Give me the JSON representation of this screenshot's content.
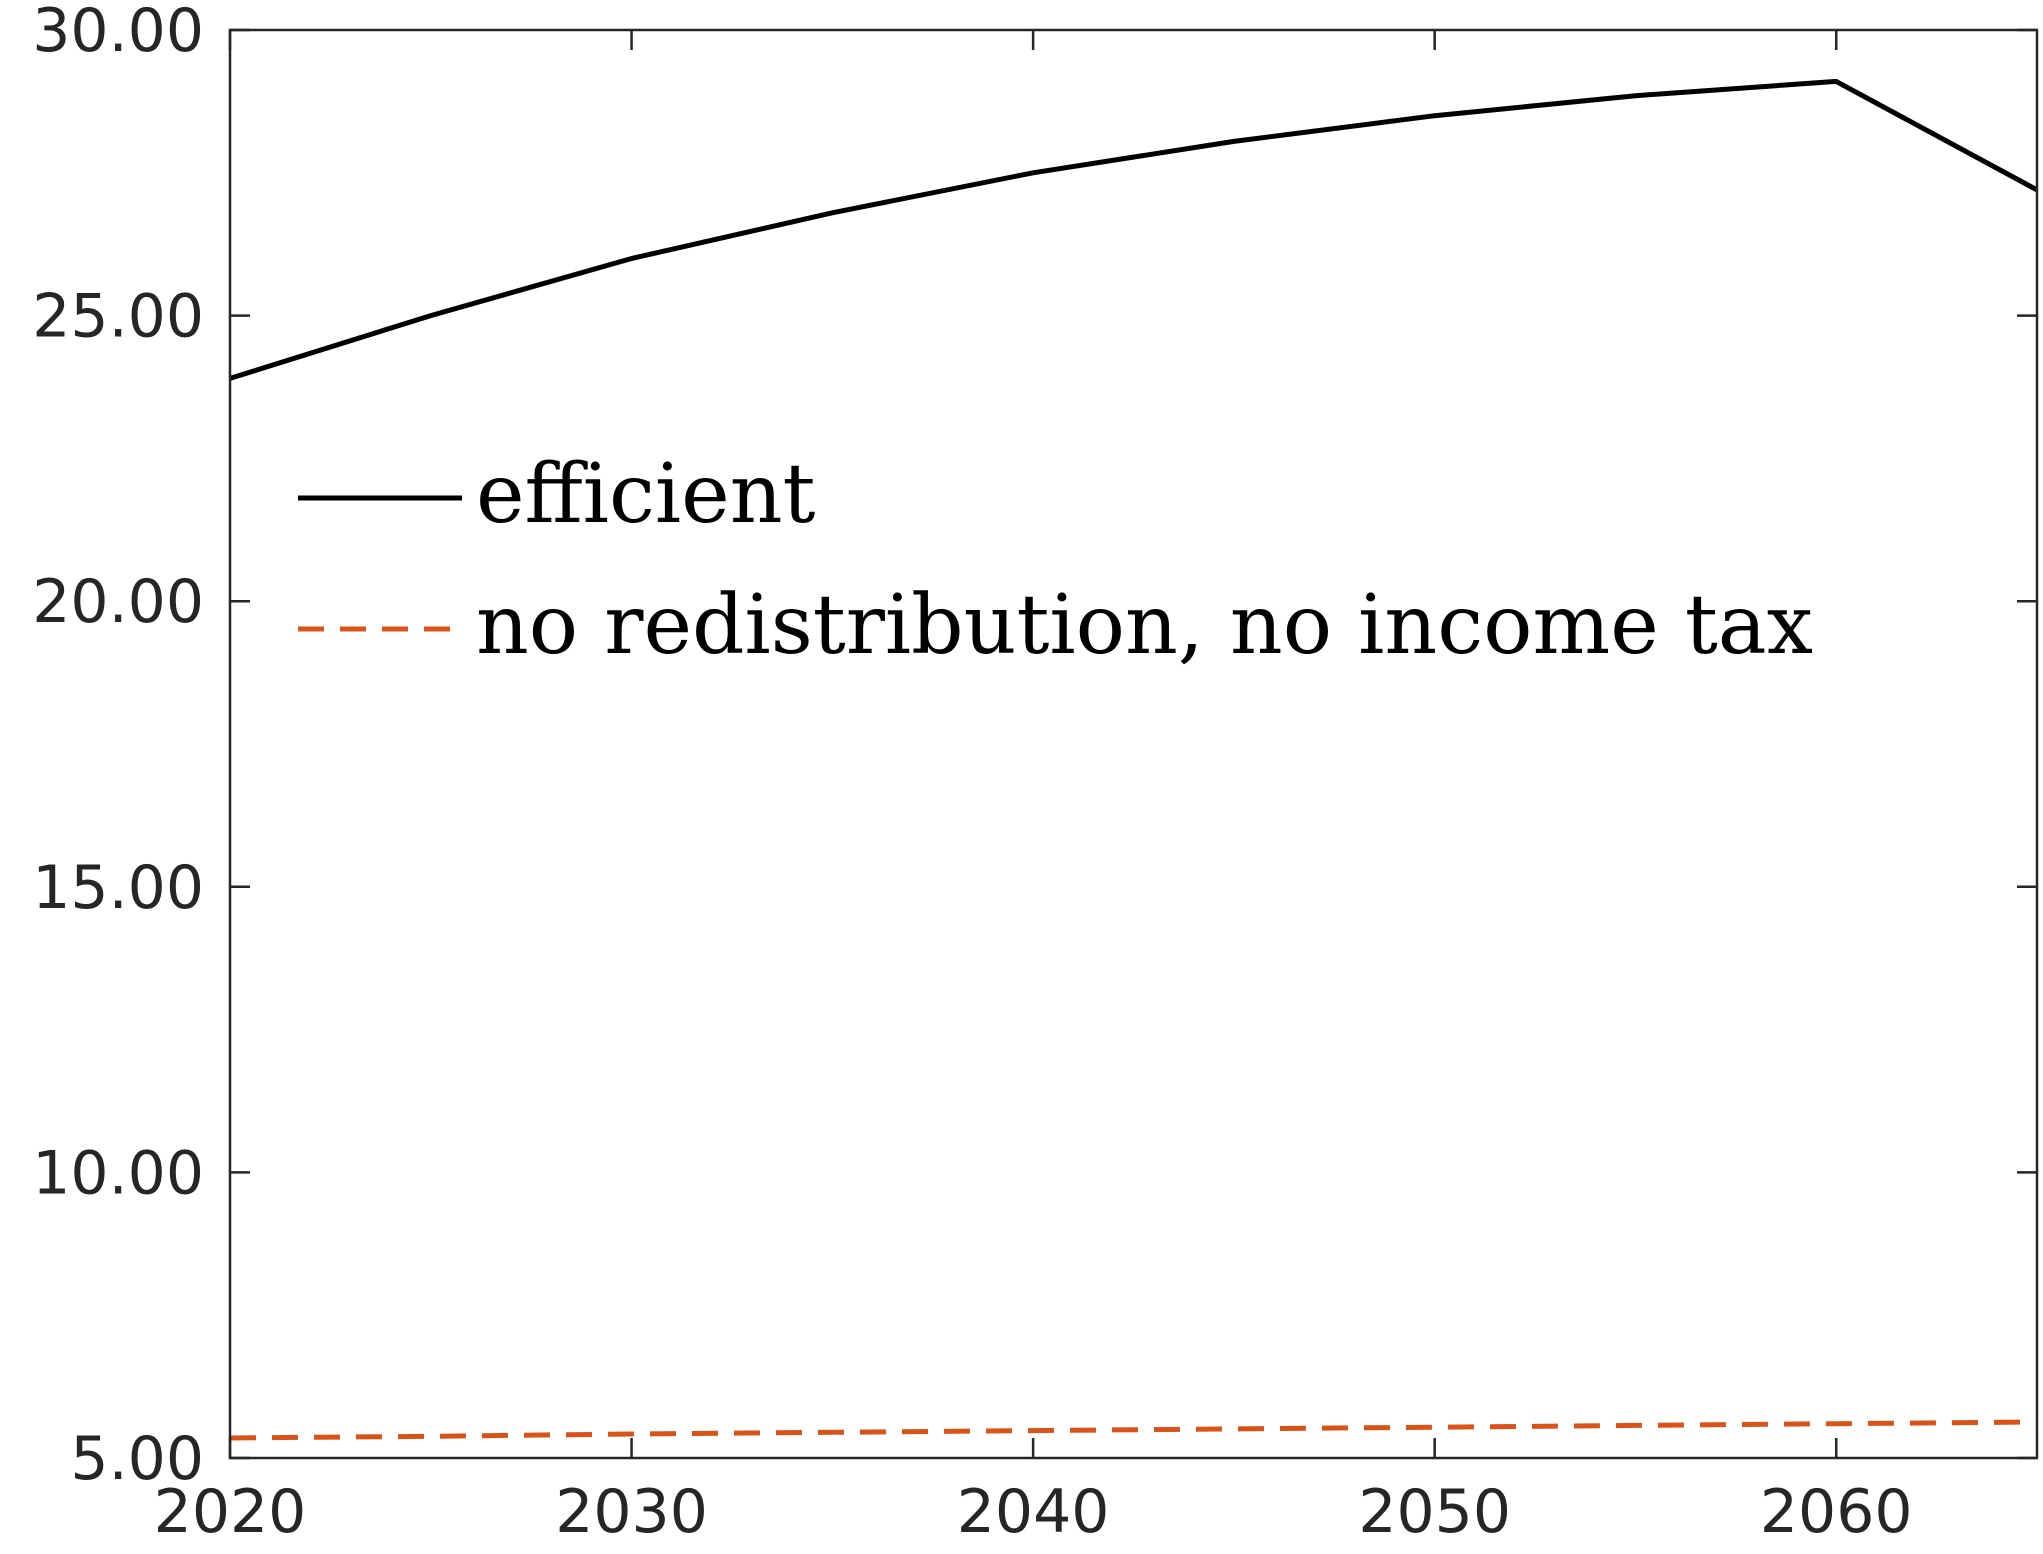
{
  "chart_data": {
    "type": "line",
    "title": "",
    "xlabel": "",
    "ylabel": "",
    "xlim": [
      2020,
      2065
    ],
    "ylim": [
      5,
      30
    ],
    "x_ticks": [
      2020,
      2030,
      2040,
      2050,
      2060
    ],
    "y_ticks": [
      5,
      10,
      15,
      20,
      25,
      30
    ],
    "x_tick_labels": [
      "2020",
      "2030",
      "2040",
      "2050",
      "2060"
    ],
    "y_tick_labels": [
      "5.00",
      "10.00",
      "15.00",
      "20.00",
      "25.00",
      "30.00"
    ],
    "grid": false,
    "legend_position": "upper-left",
    "x": [
      2020,
      2025,
      2030,
      2035,
      2040,
      2045,
      2050,
      2055,
      2060,
      2065
    ],
    "series": [
      {
        "name": "efficient",
        "color": "#000000",
        "dash": "solid",
        "values": [
          23.9,
          25.0,
          26.0,
          26.8,
          27.5,
          28.05,
          28.5,
          28.85,
          29.1,
          27.2
        ]
      },
      {
        "name": "no redistribution, no income tax",
        "color": "#d95319",
        "dash": "dashed",
        "values": [
          5.35,
          5.38,
          5.42,
          5.45,
          5.48,
          5.51,
          5.54,
          5.57,
          5.6,
          5.63
        ]
      }
    ]
  }
}
